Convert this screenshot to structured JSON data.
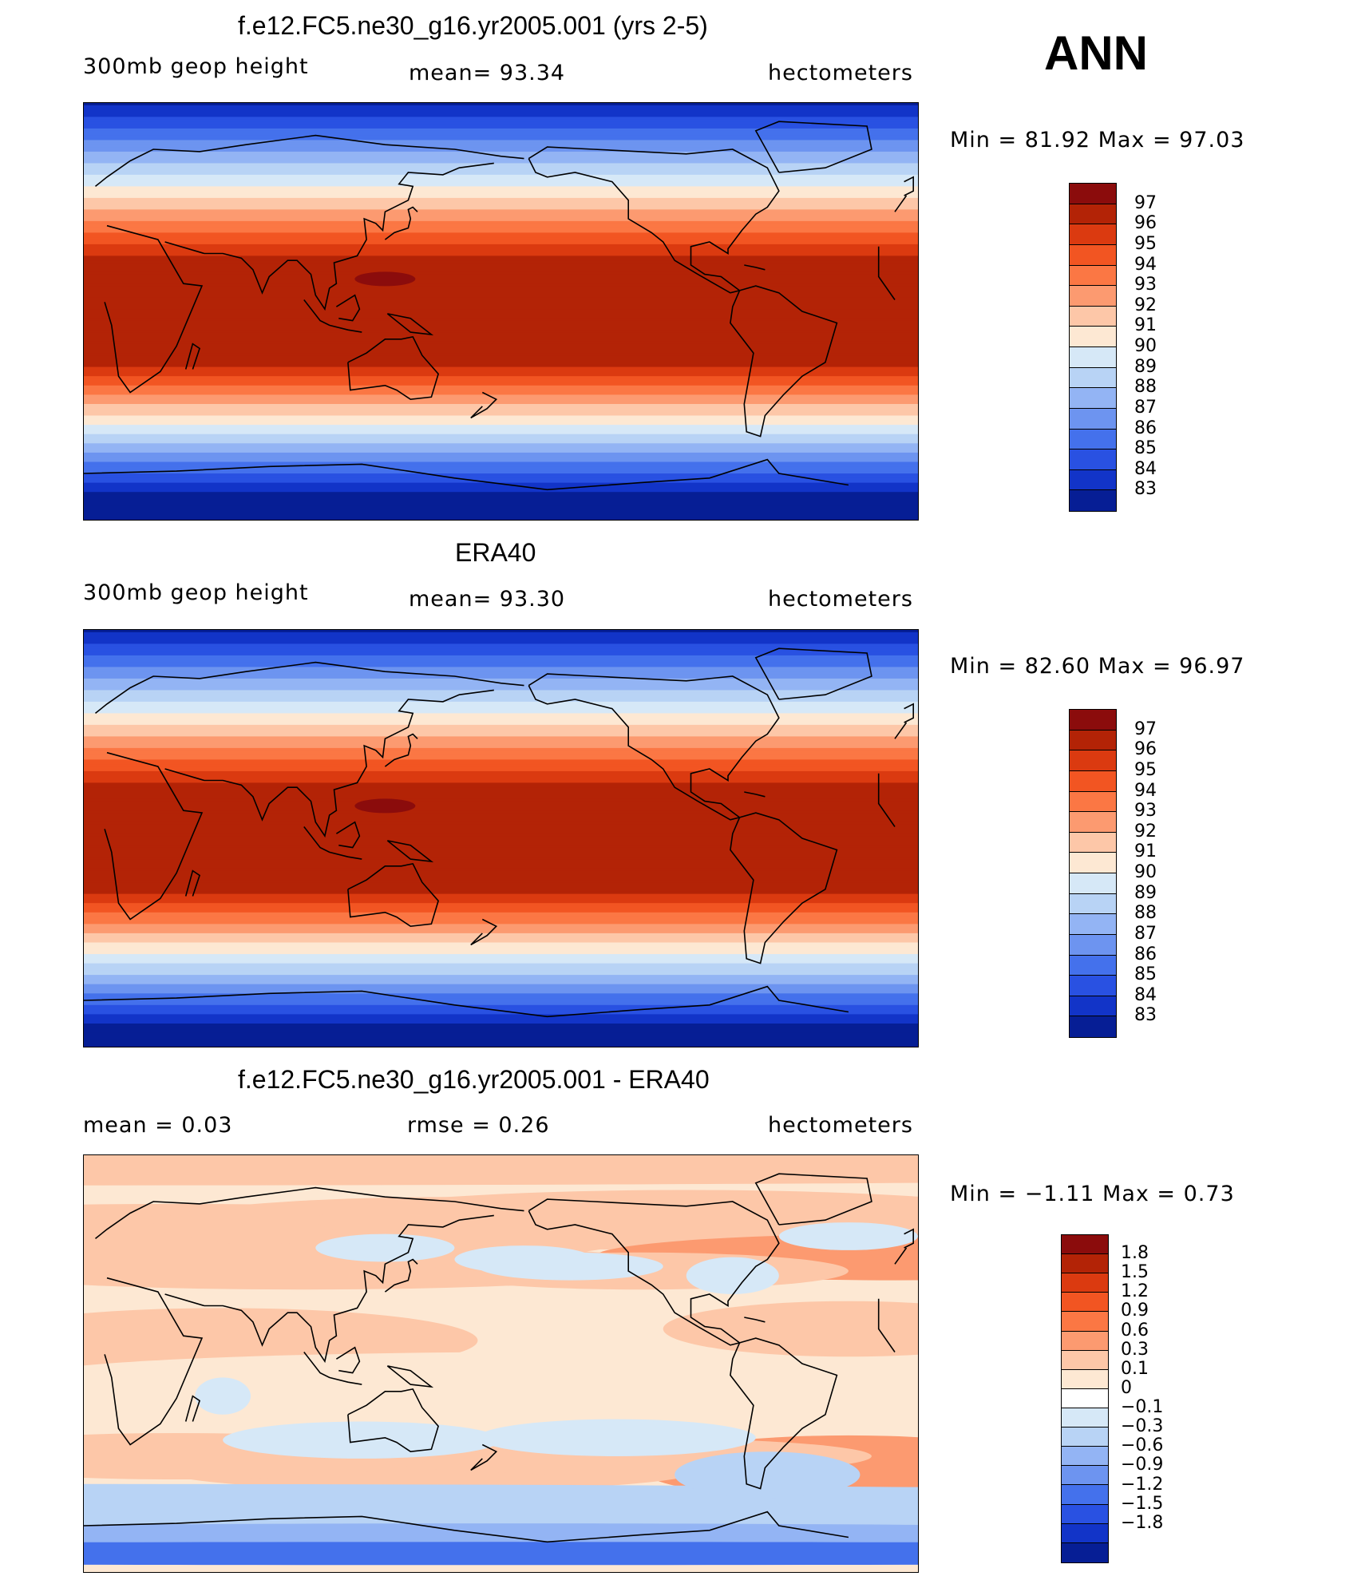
{
  "season": "ANN",
  "panels": [
    {
      "title": "f.e12.FC5.ne30_g16.yr2005.001 (yrs 2-5)",
      "left": "300mb  geop  height",
      "middle": "mean=   93.34",
      "right": "hectometers",
      "minmax": "Min  =    81.92  Max  =    97.03",
      "levels": [
        "97",
        "96",
        "95",
        "94",
        "93",
        "92",
        "91",
        "90",
        "89",
        "88",
        "87",
        "86",
        "85",
        "84",
        "83"
      ]
    },
    {
      "title": "ERA40",
      "left": "300mb  geop  height",
      "middle": "mean=   93.30",
      "right": "hectometers",
      "minmax": "Min  =    82.60  Max  =    96.97",
      "levels": [
        "97",
        "96",
        "95",
        "94",
        "93",
        "92",
        "91",
        "90",
        "89",
        "88",
        "87",
        "86",
        "85",
        "84",
        "83"
      ]
    },
    {
      "title": "f.e12.FC5.ne30_g16.yr2005.001 - ERA40",
      "left": "mean  =      0.03",
      "middle": "rmse  =      0.26",
      "right": "hectometers",
      "minmax": "Min  =    −1.11  Max  =      0.73",
      "levels": [
        "1.8",
        "1.5",
        "1.2",
        "0.9",
        "0.6",
        "0.3",
        "0.1",
        "0",
        "−0.1",
        "−0.3",
        "−0.6",
        "−0.9",
        "−1.2",
        "−1.5",
        "−1.8"
      ]
    }
  ],
  "chart_data": [
    {
      "type": "heatmap",
      "title": "f.e12.FC5.ne30_g16.yr2005.001 (yrs 2-5)",
      "variable": "300mb geop height",
      "units": "hectometers",
      "mean": 93.34,
      "min": 81.92,
      "max": 97.03,
      "contour_levels": [
        83,
        84,
        85,
        86,
        87,
        88,
        89,
        90,
        91,
        92,
        93,
        94,
        95,
        96,
        97
      ]
    },
    {
      "type": "heatmap",
      "title": "ERA40",
      "variable": "300mb geop height",
      "units": "hectometers",
      "mean": 93.3,
      "min": 82.6,
      "max": 96.97,
      "contour_levels": [
        83,
        84,
        85,
        86,
        87,
        88,
        89,
        90,
        91,
        92,
        93,
        94,
        95,
        96,
        97
      ]
    },
    {
      "type": "heatmap",
      "title": "f.e12.FC5.ne30_g16.yr2005.001 - ERA40",
      "units": "hectometers",
      "mean": 0.03,
      "rmse": 0.26,
      "min": -1.11,
      "max": 0.73,
      "contour_levels": [
        -1.8,
        -1.5,
        -1.2,
        -0.9,
        -0.6,
        -0.3,
        -0.1,
        0,
        0.1,
        0.3,
        0.6,
        0.9,
        1.2,
        1.5,
        1.8
      ]
    }
  ],
  "palettes": {
    "abs": [
      "#8b0c0c",
      "#b32306",
      "#db3a10",
      "#f25522",
      "#fb7744",
      "#fc9a70",
      "#fdc7a8",
      "#fde8d3",
      "#d6e8f7",
      "#b8d3f5",
      "#93b4f4",
      "#6d94f0",
      "#4471ec",
      "#2951e2",
      "#1234c8",
      "#061e95"
    ],
    "diff": [
      "#8b0c0c",
      "#b32306",
      "#db3a10",
      "#f25522",
      "#fb7744",
      "#fc9a70",
      "#fdc7a8",
      "#fde8d3",
      "#ffffff",
      "#d6e8f7",
      "#b8d3f5",
      "#93b4f4",
      "#6d94f0",
      "#4471ec",
      "#2951e2",
      "#1234c8",
      "#061e95"
    ]
  }
}
